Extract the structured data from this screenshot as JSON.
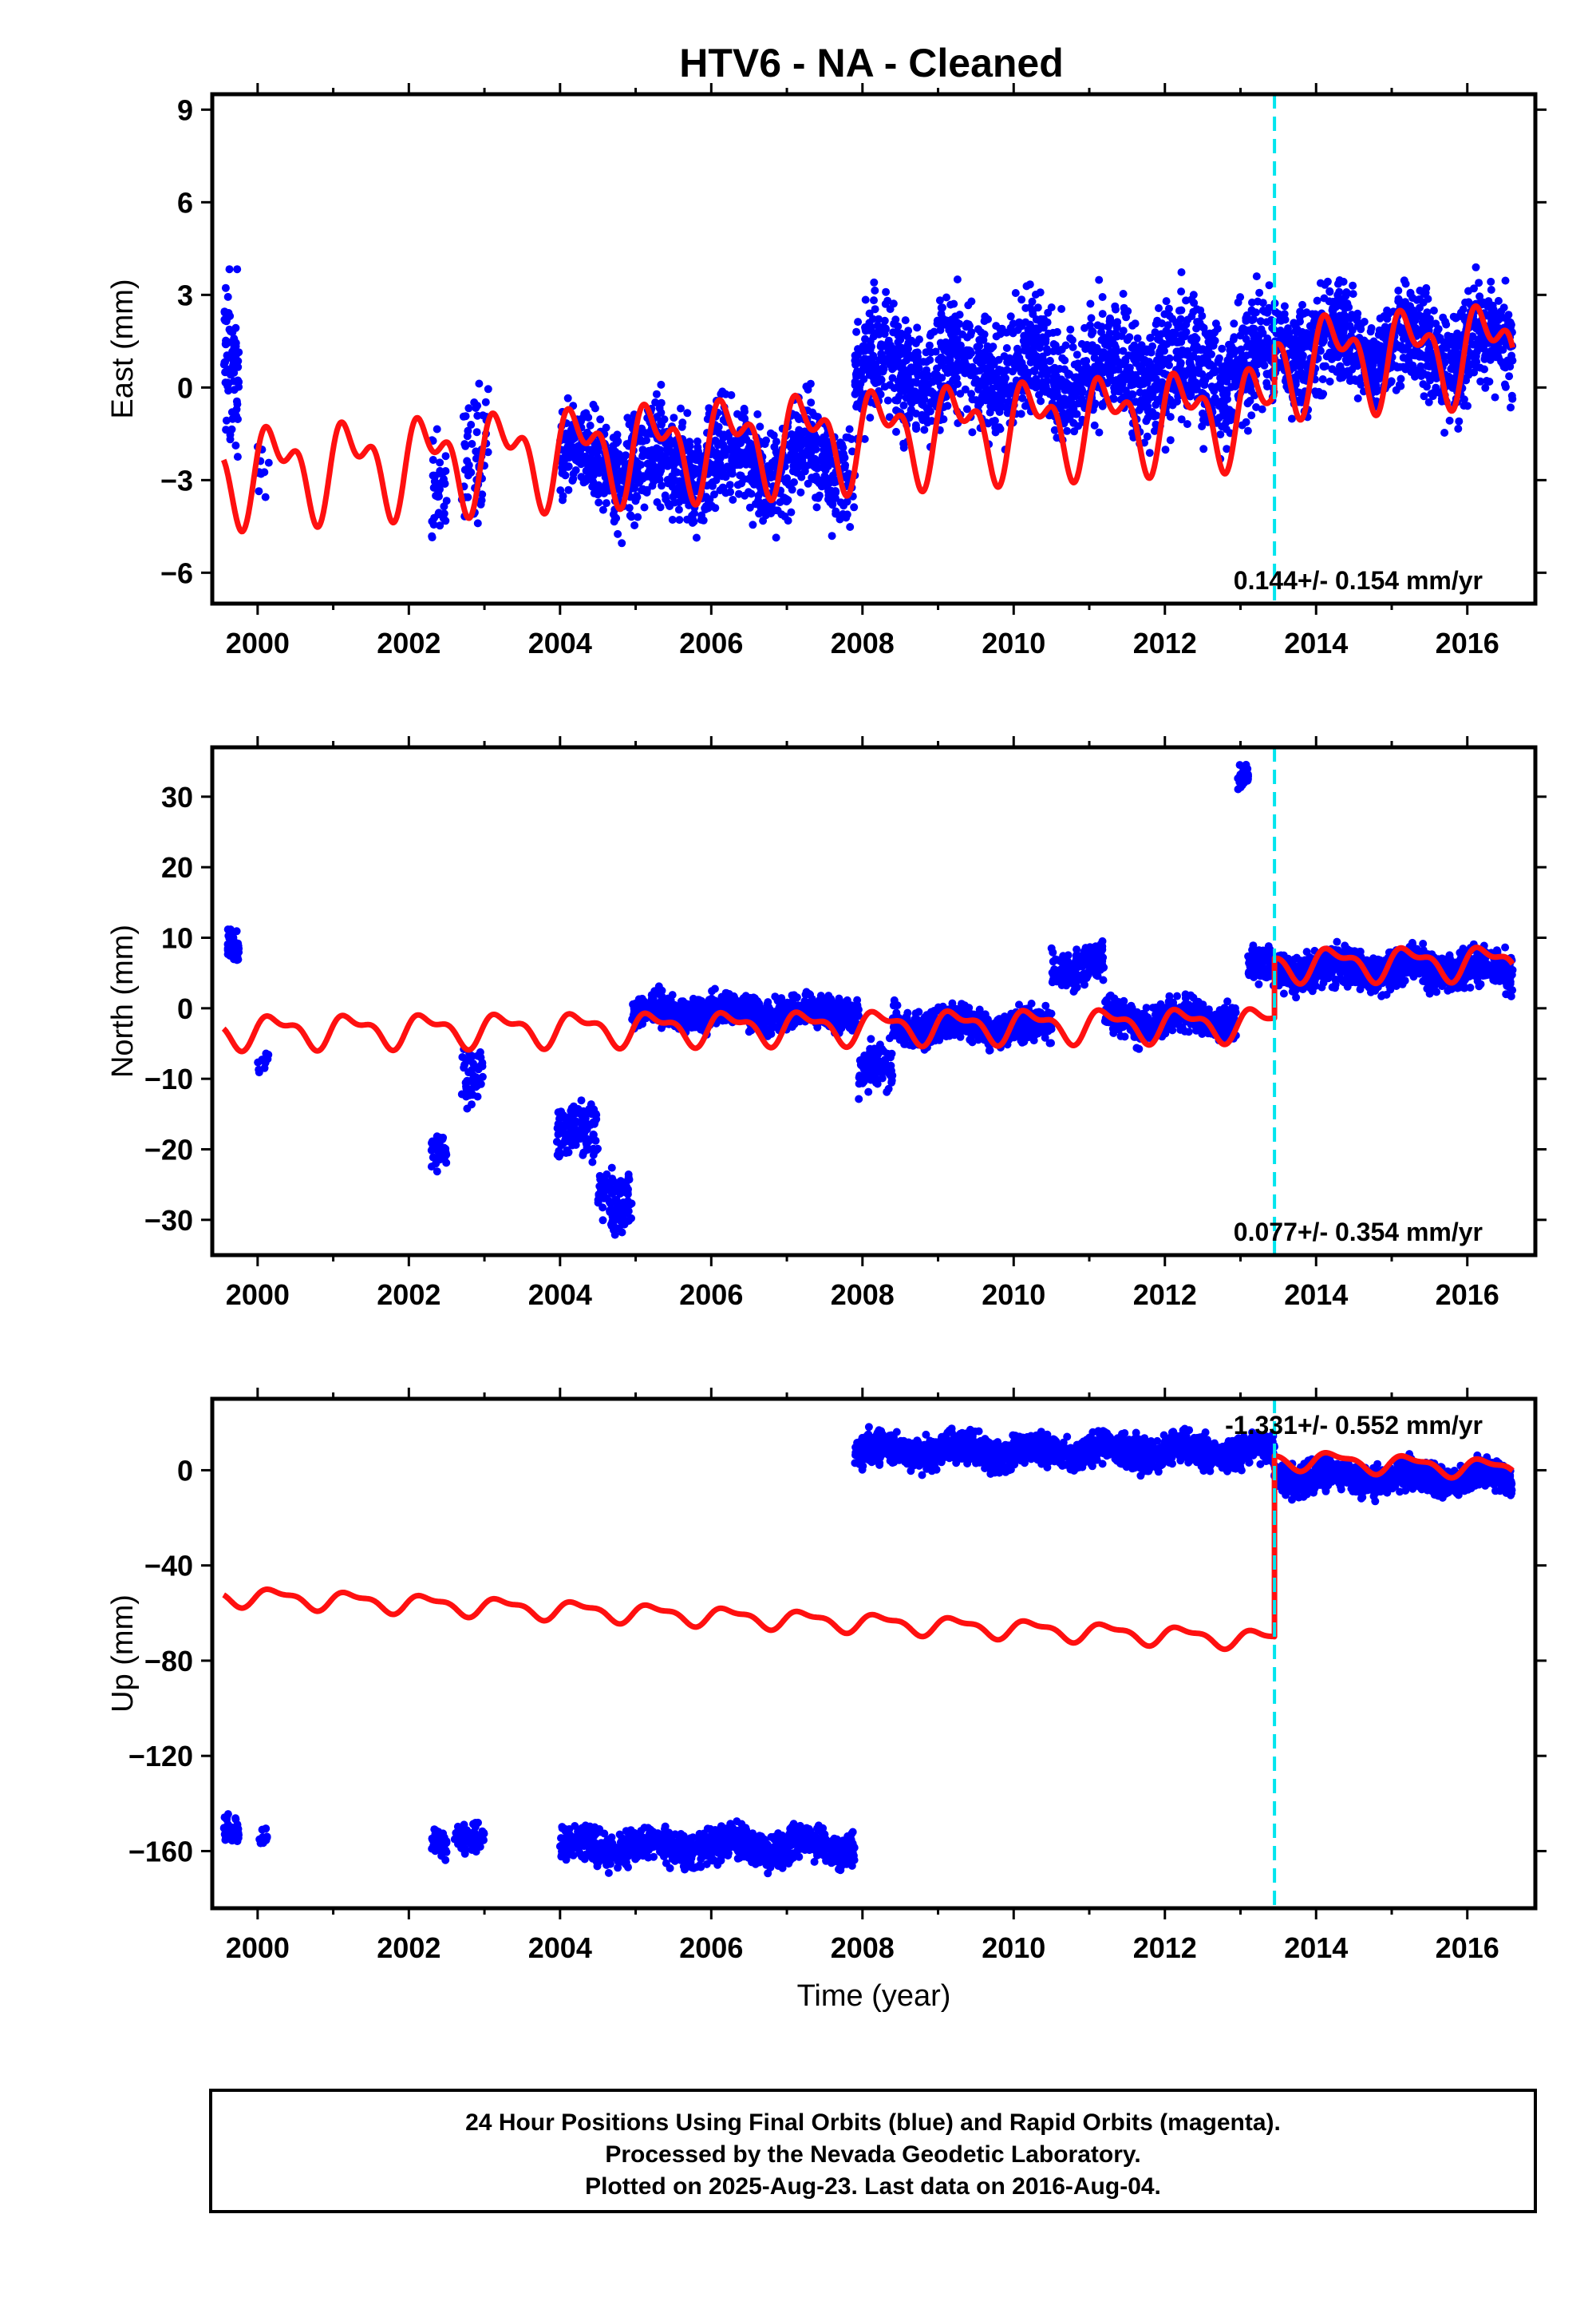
{
  "title": "HTV6  - NA - Cleaned",
  "colors": {
    "daily_positions": "#0000ff",
    "model_fit": "#ff1010",
    "event_marker": "#00e5ee",
    "frame": "#000000"
  },
  "chart_data": [
    {
      "type": "scatter",
      "name": "east",
      "ylabel": "East (mm)",
      "xlabel": "",
      "xlim": [
        1999.4,
        2016.9
      ],
      "ylim": [
        -7,
        9.5
      ],
      "y_ticks": [
        -6,
        -3,
        0,
        3,
        6,
        9
      ],
      "x_ticks": [
        2000,
        2002,
        2004,
        2006,
        2008,
        2010,
        2012,
        2014,
        2016
      ],
      "rate_label": "0.144+/- 0.154 mm/yr",
      "rate_position": "bottom-right",
      "event_line_x": 2013.45,
      "fit_model": {
        "offset": -1.55,
        "trend_mm_per_yr": 0.144,
        "ref_year": 2008.0,
        "annual_amp": 1.2,
        "semiannual_amp": 0.8,
        "step_at_event": 1.6
      },
      "point_clusters": [
        {
          "x_range": [
            1999.55,
            1999.75
          ],
          "center": 1.5,
          "spread": 3.0,
          "count": 70
        },
        {
          "x_range": [
            2000.0,
            2000.15
          ],
          "center": -2.8,
          "spread": 1.0,
          "count": 10
        },
        {
          "x_range": [
            2002.3,
            2002.5
          ],
          "center": -3.6,
          "spread": 1.8,
          "count": 40
        },
        {
          "x_range": [
            2002.7,
            2003.05
          ],
          "center": -2.0,
          "spread": 2.0,
          "count": 55
        },
        {
          "x_range": [
            2004.0,
            2007.9
          ],
          "center": -2.4,
          "spread": 1.6,
          "count": 1100
        },
        {
          "x_range": [
            2007.9,
            2013.45
          ],
          "center": 0.6,
          "spread": 1.9,
          "count": 1700
        },
        {
          "x_range": [
            2013.45,
            2016.6
          ],
          "center": 1.3,
          "spread": 1.6,
          "count": 1000
        }
      ]
    },
    {
      "type": "scatter",
      "name": "north",
      "ylabel": "North (mm)",
      "xlabel": "",
      "xlim": [
        1999.4,
        2016.9
      ],
      "ylim": [
        -35,
        37
      ],
      "y_ticks": [
        -30,
        -20,
        -10,
        0,
        10,
        20,
        30
      ],
      "x_ticks": [
        2000,
        2002,
        2004,
        2006,
        2008,
        2010,
        2012,
        2014,
        2016
      ],
      "rate_label": "0.077+/- 0.354 mm/yr",
      "rate_position": "bottom-right",
      "event_line_x": 2013.45,
      "fit_model": {
        "offset": -2.6,
        "trend_mm_per_yr": 0.077,
        "ref_year": 2008.0,
        "annual_amp": 2.0,
        "semiannual_amp": 1.0,
        "step_at_event": 8.5
      },
      "point_clusters": [
        {
          "x_range": [
            1999.6,
            1999.75
          ],
          "center": 9.5,
          "spread": 2.5,
          "count": 50
        },
        {
          "x_range": [
            2000.0,
            2000.15
          ],
          "center": -8.0,
          "spread": 2.0,
          "count": 10
        },
        {
          "x_range": [
            2002.3,
            2002.5
          ],
          "center": -21.0,
          "spread": 2.5,
          "count": 40
        },
        {
          "x_range": [
            2002.7,
            2003.0
          ],
          "center": -9.0,
          "spread": 4.5,
          "count": 45
        },
        {
          "x_range": [
            2003.95,
            2004.5
          ],
          "center": -18.0,
          "spread": 4.0,
          "count": 120
        },
        {
          "x_range": [
            2004.5,
            2004.95
          ],
          "center": -26.5,
          "spread": 4.0,
          "count": 110
        },
        {
          "x_range": [
            2004.95,
            2007.95
          ],
          "center": -0.5,
          "spread": 2.2,
          "count": 900
        },
        {
          "x_range": [
            2007.95,
            2008.4
          ],
          "center": -9.0,
          "spread": 3.5,
          "count": 110
        },
        {
          "x_range": [
            2008.4,
            2010.5
          ],
          "center": -2.5,
          "spread": 2.3,
          "count": 550
        },
        {
          "x_range": [
            2010.5,
            2011.2
          ],
          "center": 6.0,
          "spread": 2.5,
          "count": 160
        },
        {
          "x_range": [
            2011.2,
            2012.95
          ],
          "center": -1.5,
          "spread": 2.5,
          "count": 450
        },
        {
          "x_range": [
            2012.95,
            2013.1
          ],
          "center": 32.5,
          "spread": 1.5,
          "count": 30
        },
        {
          "x_range": [
            2013.1,
            2016.6
          ],
          "center": 5.5,
          "spread": 2.5,
          "count": 1100
        }
      ]
    },
    {
      "type": "scatter",
      "name": "up",
      "ylabel": "Up (mm)",
      "xlabel": "Time (year)",
      "xlim": [
        1999.4,
        2016.9
      ],
      "ylim": [
        -184,
        30
      ],
      "y_ticks": [
        -160,
        -120,
        -80,
        -40,
        0
      ],
      "x_ticks": [
        2000,
        2002,
        2004,
        2006,
        2008,
        2010,
        2012,
        2014,
        2016
      ],
      "rate_label": "-1.331+/- 0.552 mm/yr",
      "rate_position": "top-right",
      "event_line_x": 2013.45,
      "fit_model": {
        "offset": -64.0,
        "trend_mm_per_yr": -1.331,
        "ref_year": 2008.0,
        "annual_amp": 3.5,
        "semiannual_amp": 1.5,
        "step_at_event": 76.0
      },
      "point_clusters": [
        {
          "x_range": [
            1999.55,
            1999.75
          ],
          "center": -150.0,
          "spread": 6.0,
          "count": 60
        },
        {
          "x_range": [
            2000.0,
            2000.15
          ],
          "center": -155.0,
          "spread": 6.0,
          "count": 10
        },
        {
          "x_range": [
            2002.3,
            2002.5
          ],
          "center": -158.0,
          "spread": 5.0,
          "count": 40
        },
        {
          "x_range": [
            2002.6,
            2003.0
          ],
          "center": -153.0,
          "spread": 6.0,
          "count": 60
        },
        {
          "x_range": [
            2004.0,
            2007.9
          ],
          "center": -158.0,
          "spread": 7.0,
          "count": 1000
        },
        {
          "x_range": [
            2007.9,
            2013.45
          ],
          "center": 8.0,
          "spread": 6.5,
          "count": 1600
        },
        {
          "x_range": [
            2013.45,
            2016.6
          ],
          "center": -3.0,
          "spread": 6.0,
          "count": 1000
        }
      ]
    }
  ],
  "footer": {
    "line1": "24 Hour Positions Using Final Orbits (blue) and Rapid Orbits (magenta).",
    "line2": "Processed by the Nevada Geodetic Laboratory.",
    "line3": "Plotted on 2025-Aug-23. Last data on 2016-Aug-04."
  }
}
